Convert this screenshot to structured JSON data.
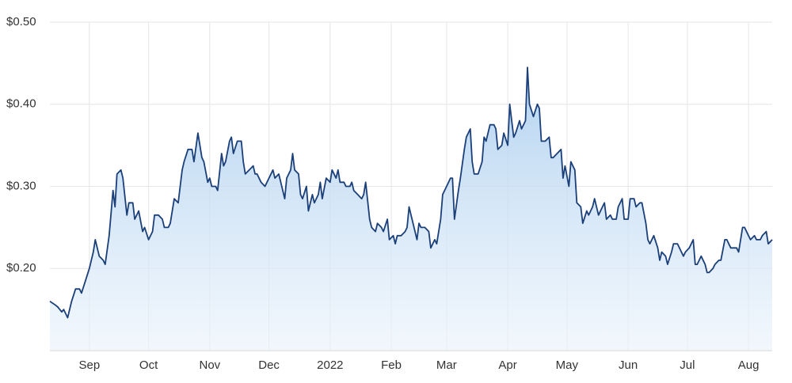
{
  "chart_data": {
    "type": "area",
    "x": [
      0,
      3,
      4,
      6,
      7,
      9,
      11,
      13,
      15,
      16,
      18,
      20,
      22,
      23,
      25,
      27,
      28,
      30,
      32,
      33,
      34,
      36,
      37,
      39,
      40,
      42,
      43,
      45,
      47,
      48,
      50,
      52,
      53,
      55,
      57,
      58,
      60,
      61,
      63,
      65,
      67,
      68,
      70,
      72,
      73,
      75,
      77,
      78,
      80,
      81,
      82,
      84,
      85,
      87,
      88,
      89,
      91,
      92,
      93,
      95,
      97,
      98,
      99,
      101,
      103,
      104,
      105,
      107,
      109,
      110,
      111,
      113,
      114,
      116,
      117,
      119,
      120,
      122,
      123,
      124,
      126,
      127,
      128,
      130,
      131,
      133,
      134,
      136,
      137,
      138,
      140,
      142,
      143,
      145,
      146,
      147,
      149,
      150,
      152,
      153,
      154,
      156,
      158,
      159,
      160,
      162,
      163,
      165,
      166,
      168,
      169,
      171,
      172,
      174,
      175,
      176,
      178,
      180,
      181,
      182,
      184,
      186,
      187,
      188,
      190,
      192,
      193,
      195,
      196,
      198,
      199,
      201,
      203,
      204,
      205,
      207,
      208,
      210,
      211,
      213,
      214,
      215,
      217,
      219,
      220,
      221,
      223,
      225,
      226,
      227,
      229,
      230,
      232,
      233,
      235,
      236,
      238,
      239,
      241,
      242,
      243,
      245,
      247,
      248,
      249,
      251,
      253,
      254,
      255,
      257,
      259,
      260,
      261,
      263,
      264,
      266,
      267,
      269,
      270,
      272,
      273,
      275,
      276,
      278,
      280,
      281,
      282,
      284,
      285,
      287,
      288,
      290,
      291,
      293,
      294,
      296,
      297,
      299,
      300,
      302,
      303,
      304,
      306,
      308,
      309,
      310,
      312,
      313,
      315,
      316,
      318,
      320,
      321,
      322,
      324,
      326,
      327,
      328,
      330,
      332,
      333,
      334,
      336,
      337,
      339,
      340,
      342,
      343,
      345,
      346,
      348,
      349,
      351,
      352,
      354,
      355,
      357,
      358,
      360,
      361,
      363,
      364,
      366
    ],
    "values": [
      0.16,
      0.155,
      0.153,
      0.147,
      0.15,
      0.14,
      0.16,
      0.175,
      0.175,
      0.17,
      0.185,
      0.2,
      0.22,
      0.235,
      0.215,
      0.21,
      0.205,
      0.24,
      0.295,
      0.275,
      0.315,
      0.32,
      0.31,
      0.265,
      0.28,
      0.28,
      0.26,
      0.27,
      0.245,
      0.25,
      0.235,
      0.245,
      0.265,
      0.265,
      0.26,
      0.25,
      0.25,
      0.255,
      0.285,
      0.28,
      0.32,
      0.33,
      0.345,
      0.345,
      0.33,
      0.365,
      0.335,
      0.33,
      0.305,
      0.31,
      0.3,
      0.3,
      0.295,
      0.34,
      0.325,
      0.33,
      0.355,
      0.36,
      0.34,
      0.355,
      0.355,
      0.33,
      0.315,
      0.32,
      0.325,
      0.315,
      0.315,
      0.305,
      0.3,
      0.305,
      0.31,
      0.32,
      0.31,
      0.315,
      0.305,
      0.285,
      0.31,
      0.32,
      0.34,
      0.32,
      0.315,
      0.29,
      0.285,
      0.3,
      0.27,
      0.29,
      0.28,
      0.29,
      0.305,
      0.285,
      0.31,
      0.305,
      0.32,
      0.31,
      0.32,
      0.305,
      0.305,
      0.3,
      0.3,
      0.305,
      0.295,
      0.29,
      0.285,
      0.29,
      0.305,
      0.26,
      0.25,
      0.245,
      0.255,
      0.25,
      0.245,
      0.26,
      0.235,
      0.24,
      0.23,
      0.24,
      0.24,
      0.245,
      0.25,
      0.275,
      0.255,
      0.235,
      0.255,
      0.25,
      0.25,
      0.245,
      0.225,
      0.235,
      0.23,
      0.26,
      0.29,
      0.3,
      0.31,
      0.31,
      0.26,
      0.295,
      0.31,
      0.345,
      0.36,
      0.37,
      0.33,
      0.315,
      0.315,
      0.33,
      0.36,
      0.355,
      0.375,
      0.375,
      0.37,
      0.345,
      0.35,
      0.365,
      0.35,
      0.4,
      0.36,
      0.365,
      0.38,
      0.37,
      0.38,
      0.445,
      0.4,
      0.385,
      0.4,
      0.395,
      0.355,
      0.355,
      0.36,
      0.335,
      0.335,
      0.34,
      0.345,
      0.31,
      0.325,
      0.3,
      0.33,
      0.32,
      0.28,
      0.275,
      0.255,
      0.27,
      0.265,
      0.275,
      0.285,
      0.265,
      0.275,
      0.28,
      0.26,
      0.265,
      0.26,
      0.26,
      0.275,
      0.285,
      0.26,
      0.26,
      0.285,
      0.285,
      0.275,
      0.28,
      0.28,
      0.255,
      0.235,
      0.23,
      0.24,
      0.225,
      0.21,
      0.22,
      0.215,
      0.205,
      0.22,
      0.23,
      0.23,
      0.22,
      0.215,
      0.22,
      0.225,
      0.235,
      0.205,
      0.205,
      0.215,
      0.205,
      0.195,
      0.195,
      0.2,
      0.205,
      0.21,
      0.21,
      0.235,
      0.235,
      0.225,
      0.225,
      0.225,
      0.22,
      0.25,
      0.25,
      0.24,
      0.235,
      0.24,
      0.235,
      0.235,
      0.24,
      0.245,
      0.23,
      0.235
    ],
    "color": "#1b3f78",
    "xlim": [
      0,
      366
    ],
    "xticks": [
      {
        "value": 20,
        "label": "Sep"
      },
      {
        "value": 50,
        "label": "Oct"
      },
      {
        "value": 81,
        "label": "Nov"
      },
      {
        "value": 111,
        "label": "Dec"
      },
      {
        "value": 142,
        "label": "2022"
      },
      {
        "value": 173,
        "label": "Feb"
      },
      {
        "value": 201,
        "label": "Mar"
      },
      {
        "value": 232,
        "label": "Apr"
      },
      {
        "value": 262,
        "label": "May"
      },
      {
        "value": 293,
        "label": "Jun"
      },
      {
        "value": 323,
        "label": "Jul"
      },
      {
        "value": 354,
        "label": "Aug"
      }
    ],
    "ylim": [
      0.1,
      0.5
    ],
    "yticks": [
      {
        "value": 0.2,
        "label": "$0.20"
      },
      {
        "value": 0.3,
        "label": "$0.30"
      },
      {
        "value": 0.4,
        "label": "$0.40"
      },
      {
        "value": 0.5,
        "label": "$0.50"
      }
    ],
    "grid": true
  }
}
